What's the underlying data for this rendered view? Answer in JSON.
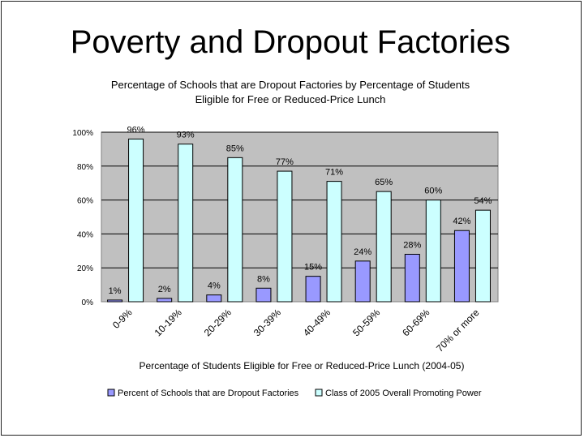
{
  "slide": {
    "title": "Poverty and Dropout Factories"
  },
  "chart_data": {
    "type": "bar",
    "title_line1": "Percentage of Schools that are Dropout Factories by Percentage of Students",
    "title_line2": "Eligible for Free or Reduced-Price Lunch",
    "xlabel": "Percentage of Students Eligible for Free or Reduced-Price Lunch (2004-05)",
    "ylabel": "",
    "ylim": [
      0,
      100
    ],
    "yticks": [
      "0%",
      "20%",
      "40%",
      "60%",
      "80%",
      "100%"
    ],
    "ytick_values": [
      0,
      20,
      40,
      60,
      80,
      100
    ],
    "categories": [
      "0-9%",
      "10-19%",
      "20-29%",
      "30-39%",
      "40-49%",
      "50-59%",
      "60-69%",
      "70% or more"
    ],
    "series": [
      {
        "name": "Percent of Schools that are Dropout Factories",
        "color": "#9999ff",
        "values": [
          1,
          2,
          4,
          8,
          15,
          24,
          28,
          42
        ],
        "labels": [
          "1%",
          "2%",
          "4%",
          "8%",
          "15%",
          "24%",
          "28%",
          "42%"
        ]
      },
      {
        "name": "Class of 2005 Overall Promoting Power",
        "color": "#ccffff",
        "values": [
          96,
          93,
          85,
          77,
          71,
          65,
          60,
          54
        ],
        "labels": [
          "96%",
          "93%",
          "85%",
          "77%",
          "71%",
          "65%",
          "60%",
          "54%"
        ]
      }
    ],
    "colors": {
      "plot_bg": "#c0c0c0",
      "grid": "#000000"
    },
    "legend_position": "bottom"
  }
}
